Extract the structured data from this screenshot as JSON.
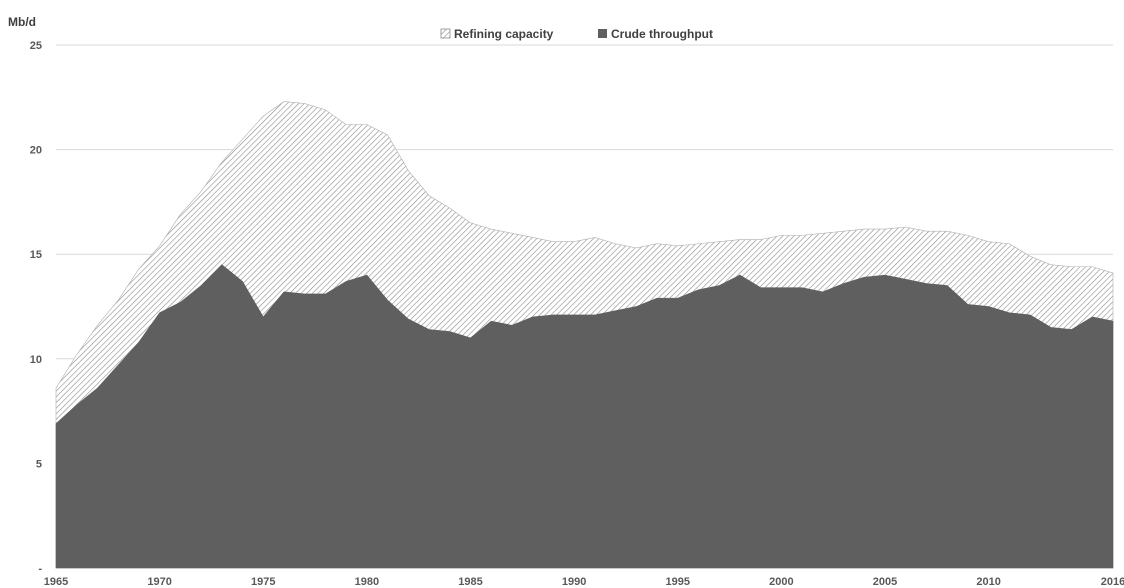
{
  "chart_data": {
    "type": "area",
    "ylabel": "Mb/d",
    "ylim": [
      0,
      25
    ],
    "y_ticks": [
      "-",
      "5",
      "10",
      "15",
      "20",
      "25"
    ],
    "x_ticks": [
      "1965",
      "1970",
      "1975",
      "1980",
      "1985",
      "1990",
      "1995",
      "2000",
      "2005",
      "2010",
      "2016"
    ],
    "grid": "horizontal",
    "legend_position": "top",
    "x": [
      1965,
      1966,
      1967,
      1968,
      1969,
      1970,
      1971,
      1972,
      1973,
      1974,
      1975,
      1976,
      1977,
      1978,
      1979,
      1980,
      1981,
      1982,
      1983,
      1984,
      1985,
      1986,
      1987,
      1988,
      1989,
      1990,
      1991,
      1992,
      1993,
      1994,
      1995,
      1996,
      1997,
      1998,
      1999,
      2000,
      2001,
      2002,
      2003,
      2004,
      2005,
      2006,
      2007,
      2008,
      2009,
      2010,
      2011,
      2012,
      2013,
      2014,
      2015,
      2016
    ],
    "series": [
      {
        "name": "Refining capacity",
        "style": "hatched",
        "color": "#808080",
        "values": [
          8.6,
          10.2,
          11.6,
          12.8,
          14.3,
          15.4,
          16.9,
          18.0,
          19.4,
          20.5,
          21.6,
          22.3,
          22.2,
          21.9,
          21.2,
          21.2,
          20.7,
          19.0,
          17.8,
          17.2,
          16.5,
          16.2,
          16.0,
          15.8,
          15.6,
          15.6,
          15.8,
          15.5,
          15.3,
          15.5,
          15.4,
          15.5,
          15.6,
          15.7,
          15.7,
          15.9,
          15.9,
          16.0,
          16.1,
          16.2,
          16.2,
          16.3,
          16.1,
          16.1,
          15.9,
          15.6,
          15.5,
          14.9,
          14.5,
          14.4,
          14.4,
          14.1
        ]
      },
      {
        "name": "Crude throughput",
        "style": "solid",
        "color": "#5f5f5f",
        "values": [
          6.9,
          7.8,
          8.6,
          9.7,
          10.8,
          12.2,
          12.7,
          13.5,
          14.5,
          13.7,
          12.0,
          13.2,
          13.1,
          13.1,
          13.7,
          14.0,
          12.8,
          11.9,
          11.4,
          11.3,
          11.0,
          11.8,
          11.6,
          12.0,
          12.1,
          12.1,
          12.1,
          12.3,
          12.5,
          12.9,
          12.9,
          13.3,
          13.5,
          14.0,
          13.4,
          13.4,
          13.4,
          13.2,
          13.6,
          13.9,
          14.0,
          13.8,
          13.6,
          13.5,
          12.6,
          12.5,
          12.2,
          12.1,
          11.5,
          11.4,
          12.0,
          11.8
        ]
      }
    ]
  }
}
